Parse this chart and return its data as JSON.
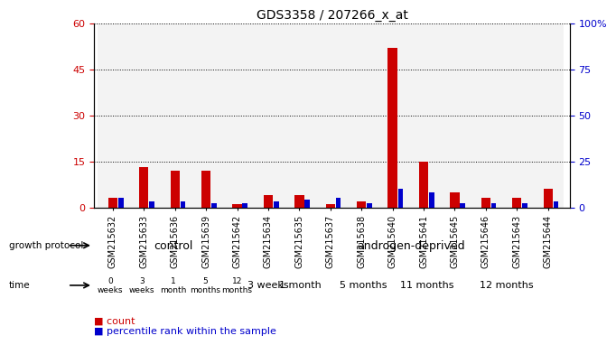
{
  "title": "GDS3358 / 207266_x_at",
  "samples": [
    "GSM215632",
    "GSM215633",
    "GSM215636",
    "GSM215639",
    "GSM215642",
    "GSM215634",
    "GSM215635",
    "GSM215637",
    "GSM215638",
    "GSM215640",
    "GSM215641",
    "GSM215645",
    "GSM215646",
    "GSM215643",
    "GSM215644"
  ],
  "count_values": [
    3,
    13,
    12,
    12,
    1,
    4,
    4,
    1,
    2,
    52,
    15,
    5,
    3,
    3,
    6
  ],
  "percentile_values": [
    5,
    3,
    3,
    2,
    2,
    3,
    4,
    5,
    2,
    10,
    8,
    2,
    2,
    2,
    3
  ],
  "ylim_left": [
    0,
    60
  ],
  "ylim_right": [
    0,
    100
  ],
  "yticks_left": [
    0,
    15,
    30,
    45,
    60
  ],
  "yticks_right": [
    0,
    25,
    50,
    75,
    100
  ],
  "color_count": "#cc0000",
  "color_percentile": "#0000cc",
  "control_label": "control",
  "androgen_label": "androgen-deprived",
  "time_label": "time",
  "protocol_label": "growth protocol",
  "color_ctrl_green": "#aaffaa",
  "color_and_green": "#44dd44",
  "color_pink_light": "#ffaaff",
  "color_pink_dark": "#dd44dd",
  "time_ctrl_labels": [
    "0\nweeks",
    "3\nweeks",
    "1\nmonth",
    "5\nmonths",
    "12\nmonths"
  ],
  "time_ctrl_colors": [
    "#ffaaff",
    "#ffaaff",
    "#ffaaff",
    "#ffaaff",
    "#dd44dd"
  ],
  "androgen_time_groups": [
    {
      "label": "3 weeks",
      "start": 5,
      "end": 6,
      "color": "#ffaaff"
    },
    {
      "label": "1 month",
      "start": 6,
      "end": 7,
      "color": "#ffaaff"
    },
    {
      "label": "5 months",
      "start": 7,
      "end": 10,
      "color": "#dd44dd"
    },
    {
      "label": "11 months",
      "start": 10,
      "end": 11,
      "color": "#dd44dd"
    },
    {
      "label": "12 months",
      "start": 11,
      "end": 15,
      "color": "#dd44dd"
    }
  ]
}
